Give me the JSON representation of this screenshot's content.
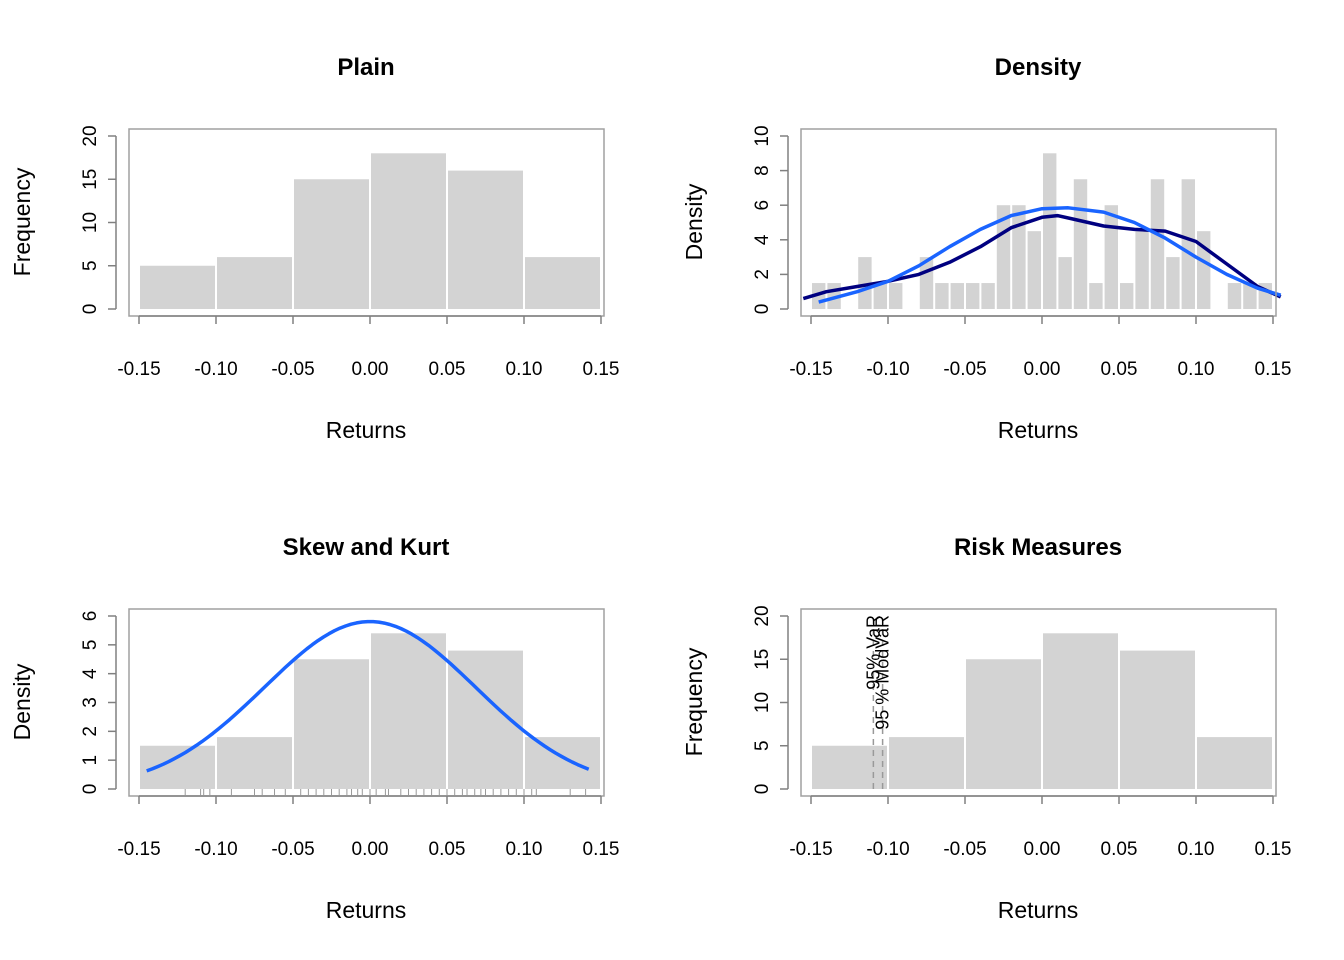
{
  "chart_data": [
    {
      "panel": "Plain",
      "type": "bar",
      "title": "Plain",
      "xlabel": "Returns",
      "ylabel": "Frequency",
      "xlim": [
        -0.15,
        0.15
      ],
      "ylim": [
        0,
        20
      ],
      "xticks": [
        "-0.15",
        "-0.10",
        "-0.05",
        "0.00",
        "0.05",
        "0.10",
        "0.15"
      ],
      "yticks": [
        "0",
        "5",
        "10",
        "15",
        "20"
      ],
      "bins": [
        [
          -0.15,
          -0.1
        ],
        [
          -0.1,
          -0.05
        ],
        [
          -0.05,
          0.0
        ],
        [
          0.0,
          0.05
        ],
        [
          0.05,
          0.1
        ],
        [
          0.1,
          0.15
        ]
      ],
      "values": [
        5,
        6,
        15,
        18,
        16,
        6
      ],
      "colors": {
        "bar": "#d3d3d3",
        "frame": "#a0a0a0"
      }
    },
    {
      "panel": "Density",
      "type": "bar",
      "title": "Density",
      "xlabel": "Returns",
      "ylabel": "Density",
      "xlim": [
        -0.15,
        0.15
      ],
      "ylim": [
        0,
        10
      ],
      "xticks": [
        "-0.15",
        "-0.10",
        "-0.05",
        "0.00",
        "0.05",
        "0.10",
        "0.15"
      ],
      "yticks": [
        "0",
        "2",
        "4",
        "6",
        "8",
        "10"
      ],
      "bin_start": -0.15,
      "bin_width": 0.01,
      "values": [
        1.5,
        1.5,
        0,
        3,
        1.5,
        1.5,
        0,
        3,
        1.5,
        1.5,
        1.5,
        1.5,
        6,
        6,
        4.5,
        9,
        3,
        7.5,
        1.5,
        6,
        1.5,
        4.5,
        7.5,
        3,
        7.5,
        4.5,
        0,
        1.5,
        1.5,
        1.5
      ],
      "series": [
        {
          "color": "#000080",
          "x": [
            -0.155,
            -0.14,
            -0.12,
            -0.1,
            -0.08,
            -0.06,
            -0.04,
            -0.02,
            0.0,
            0.01,
            0.02,
            0.04,
            0.06,
            0.08,
            0.1,
            0.12,
            0.14,
            0.155
          ],
          "values": [
            0.6,
            1.0,
            1.3,
            1.6,
            2.0,
            2.7,
            3.6,
            4.7,
            5.3,
            5.4,
            5.2,
            4.8,
            4.6,
            4.5,
            3.9,
            2.6,
            1.3,
            0.7
          ]
        },
        {
          "color": "#1a64ff",
          "x": [
            -0.145,
            -0.12,
            -0.1,
            -0.08,
            -0.06,
            -0.04,
            -0.02,
            0.0,
            0.017,
            0.04,
            0.06,
            0.08,
            0.1,
            0.12,
            0.14,
            0.155
          ],
          "values": [
            0.4,
            1.0,
            1.6,
            2.5,
            3.6,
            4.6,
            5.4,
            5.8,
            5.85,
            5.6,
            5.0,
            4.1,
            3.0,
            2.0,
            1.2,
            0.8
          ]
        }
      ],
      "colors": {
        "bar": "#d3d3d3",
        "frame": "#a0a0a0"
      }
    },
    {
      "panel": "Skew and Kurt",
      "type": "bar",
      "title": "Skew and Kurt",
      "xlabel": "Returns",
      "ylabel": "Density",
      "xlim": [
        -0.15,
        0.15
      ],
      "ylim": [
        0,
        6
      ],
      "xticks": [
        "-0.15",
        "-0.10",
        "-0.05",
        "0.00",
        "0.05",
        "0.10",
        "0.15"
      ],
      "yticks": [
        "0",
        "1",
        "2",
        "3",
        "4",
        "5",
        "6"
      ],
      "bins": [
        [
          -0.15,
          -0.1
        ],
        [
          -0.1,
          -0.05
        ],
        [
          -0.05,
          0.0
        ],
        [
          0.0,
          0.05
        ],
        [
          0.05,
          0.1
        ],
        [
          0.1,
          0.15
        ]
      ],
      "values": [
        1.5,
        1.8,
        4.5,
        5.4,
        4.8,
        1.8
      ],
      "series": [
        {
          "color": "#1a64ff",
          "distribution": "normal",
          "mean": 0.0,
          "sd": 0.0687,
          "x_range": [
            -0.145,
            0.142
          ]
        }
      ],
      "rug": [
        -0.12,
        -0.11,
        -0.108,
        -0.104,
        -0.09,
        -0.075,
        -0.07,
        -0.062,
        -0.055,
        -0.045,
        -0.04,
        -0.035,
        -0.03,
        -0.025,
        -0.02,
        -0.015,
        -0.012,
        -0.008,
        -0.005,
        0.0,
        0.004,
        0.01,
        0.012,
        0.02,
        0.025,
        0.03,
        0.035,
        0.04,
        0.045,
        0.05,
        0.055,
        0.06,
        0.063,
        0.068,
        0.072,
        0.075,
        0.08,
        0.085,
        0.09,
        0.095,
        0.1,
        0.105,
        0.108,
        0.13,
        0.14
      ],
      "colors": {
        "bar": "#d3d3d3",
        "frame": "#a0a0a0",
        "rug": "#999999"
      }
    },
    {
      "panel": "Risk Measures",
      "type": "bar",
      "title": "Risk Measures",
      "xlabel": "Returns",
      "ylabel": "Frequency",
      "xlim": [
        -0.15,
        0.15
      ],
      "ylim": [
        0,
        20
      ],
      "xticks": [
        "-0.15",
        "-0.10",
        "-0.05",
        "0.00",
        "0.05",
        "0.10",
        "0.15"
      ],
      "yticks": [
        "0",
        "5",
        "10",
        "15",
        "20"
      ],
      "bins": [
        [
          -0.15,
          -0.1
        ],
        [
          -0.1,
          -0.05
        ],
        [
          -0.05,
          0.0
        ],
        [
          0.0,
          0.05
        ],
        [
          0.05,
          0.1
        ],
        [
          0.1,
          0.15
        ]
      ],
      "values": [
        5,
        6,
        15,
        18,
        16,
        6
      ],
      "vlines": [
        {
          "x": -0.1095,
          "label": "95% VaR"
        },
        {
          "x": -0.1035,
          "label": "95 % ModVaR"
        }
      ],
      "colors": {
        "bar": "#d3d3d3",
        "frame": "#a0a0a0",
        "vline": "#999999"
      }
    }
  ]
}
